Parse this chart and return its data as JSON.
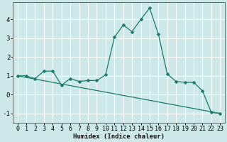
{
  "title": "",
  "xlabel": "Humidex (Indice chaleur)",
  "ylabel": "",
  "background_color": "#cce8e8",
  "grid_color": "#ffffff",
  "line_color": "#1a7a6a",
  "xlim": [
    -0.5,
    23.5
  ],
  "ylim": [
    -1.5,
    4.9
  ],
  "yticks": [
    -1,
    0,
    1,
    2,
    3,
    4
  ],
  "xticks": [
    0,
    1,
    2,
    3,
    4,
    5,
    6,
    7,
    8,
    9,
    10,
    11,
    12,
    13,
    14,
    15,
    16,
    17,
    18,
    19,
    20,
    21,
    22,
    23
  ],
  "line1_x": [
    0,
    1,
    2,
    3,
    4,
    5,
    6,
    7,
    8,
    9,
    10,
    11,
    12,
    13,
    14,
    15,
    16,
    17,
    18,
    19,
    20,
    21,
    22,
    23
  ],
  "line1_y": [
    1.0,
    1.0,
    0.85,
    1.25,
    1.25,
    0.5,
    0.85,
    0.7,
    0.75,
    0.75,
    1.05,
    3.05,
    3.7,
    3.35,
    4.0,
    4.6,
    3.2,
    1.1,
    0.7,
    0.65,
    0.65,
    0.2,
    -0.95,
    -1.0
  ],
  "line2_x": [
    0,
    23
  ],
  "line2_y": [
    1.0,
    -1.0
  ],
  "tick_fontsize": 6.0,
  "xlabel_fontsize": 6.5,
  "marker_size": 2.5,
  "line_width": 0.9
}
